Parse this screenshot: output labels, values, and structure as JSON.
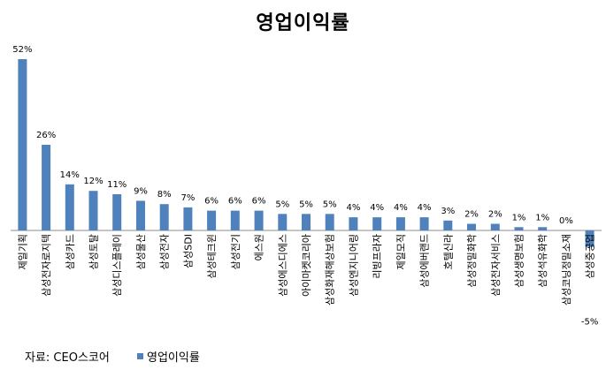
{
  "page": {
    "source_note": "자료: CEO스코어"
  },
  "chart_data": {
    "type": "bar",
    "title": "영업이익률",
    "xlabel": "",
    "ylabel": "",
    "ylim": [
      -5,
      52
    ],
    "grid": false,
    "legend": "bottom-left",
    "bar_color": "#4f81bd",
    "categories": [
      "제일기획",
      "삼성전자로지텍",
      "삼성카드",
      "삼성토탈",
      "삼성디스플레이",
      "삼성물산",
      "삼성전자",
      "삼성SDI",
      "삼성테크윈",
      "삼성전기",
      "에스원",
      "삼성에스디에스",
      "아이마켓코리아",
      "삼성화재해상보험",
      "삼성엔지니어링",
      "리빙프라자",
      "제일모직",
      "삼성에버랜드",
      "호텔신라",
      "삼성정밀화학",
      "삼성전자서비스",
      "삼성생명보험",
      "삼성석유화학",
      "삼성코닝정밀소재",
      "삼성중공업"
    ],
    "series": [
      {
        "name": "영업이익률",
        "values": [
          52,
          26,
          14,
          12,
          11,
          9,
          8,
          7,
          6,
          6,
          6,
          5,
          5,
          5,
          4,
          4,
          4,
          4,
          3,
          2,
          2,
          1,
          1,
          0,
          -5
        ],
        "labels": [
          "52%",
          "26%",
          "14%",
          "12%",
          "11%",
          "9%",
          "8%",
          "7%",
          "6%",
          "6%",
          "6%",
          "5%",
          "5%",
          "5%",
          "4%",
          "4%",
          "4%",
          "4%",
          "3%",
          "2%",
          "2%",
          "1%",
          "1%",
          "0%",
          "-5%"
        ]
      }
    ]
  }
}
